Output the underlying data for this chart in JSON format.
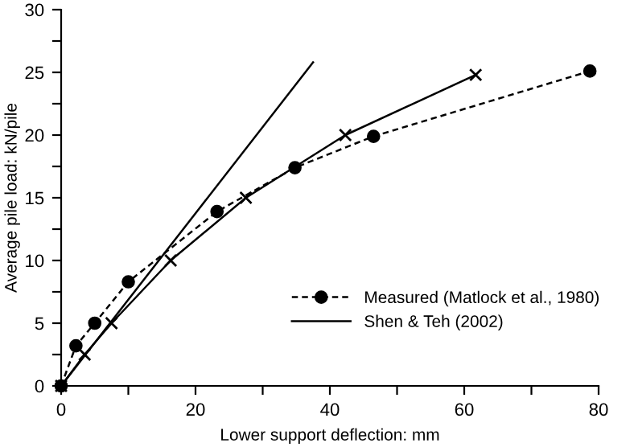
{
  "chart_data": {
    "type": "line",
    "xlabel": "Lower support deflection: mm",
    "ylabel": "Average pile load: kN/pile",
    "xlim": [
      0,
      80
    ],
    "ylim": [
      0,
      30
    ],
    "xticks": [
      0,
      {
        "value": 10,
        "label": null
      },
      20,
      {
        "value": 30,
        "label": null
      },
      40,
      {
        "value": 50,
        "label": null
      },
      60,
      {
        "value": 70,
        "label": null
      },
      80
    ],
    "yticks": [
      0,
      {
        "value": 2.5,
        "label": null
      },
      5,
      {
        "value": 7.5,
        "label": null
      },
      10,
      {
        "value": 12.5,
        "label": null
      },
      15,
      {
        "value": 17.5,
        "label": null
      },
      20,
      {
        "value": 22.5,
        "label": null
      },
      25,
      {
        "value": 27.5,
        "label": null
      },
      30
    ],
    "grid": false,
    "legend": "right",
    "series": [
      {
        "color": "#000000",
        "marker": "cross",
        "line_style": "solid",
        "x": [
          0,
          3.5,
          7.5,
          16.3,
          27.5,
          42.3,
          61.7
        ],
        "values": [
          0,
          2.5,
          5,
          10,
          15,
          20,
          24.8
        ]
      },
      {
        "name": "Measured (Matlock et al., 1980)",
        "color": "#000000",
        "marker": "circle",
        "line_style": "dashed",
        "x": [
          0,
          2.2,
          5,
          10,
          23.2,
          34.8,
          46.5,
          78.7
        ],
        "values": [
          0,
          3.2,
          5,
          8.3,
          13.9,
          17.4,
          19.9,
          25.1
        ]
      },
      {
        "name": "Shen & Teh (2002)",
        "color": "#000000",
        "marker": "none",
        "line_style": "solid",
        "x": [
          0,
          37.5
        ],
        "values": [
          0,
          25.8
        ]
      }
    ]
  }
}
